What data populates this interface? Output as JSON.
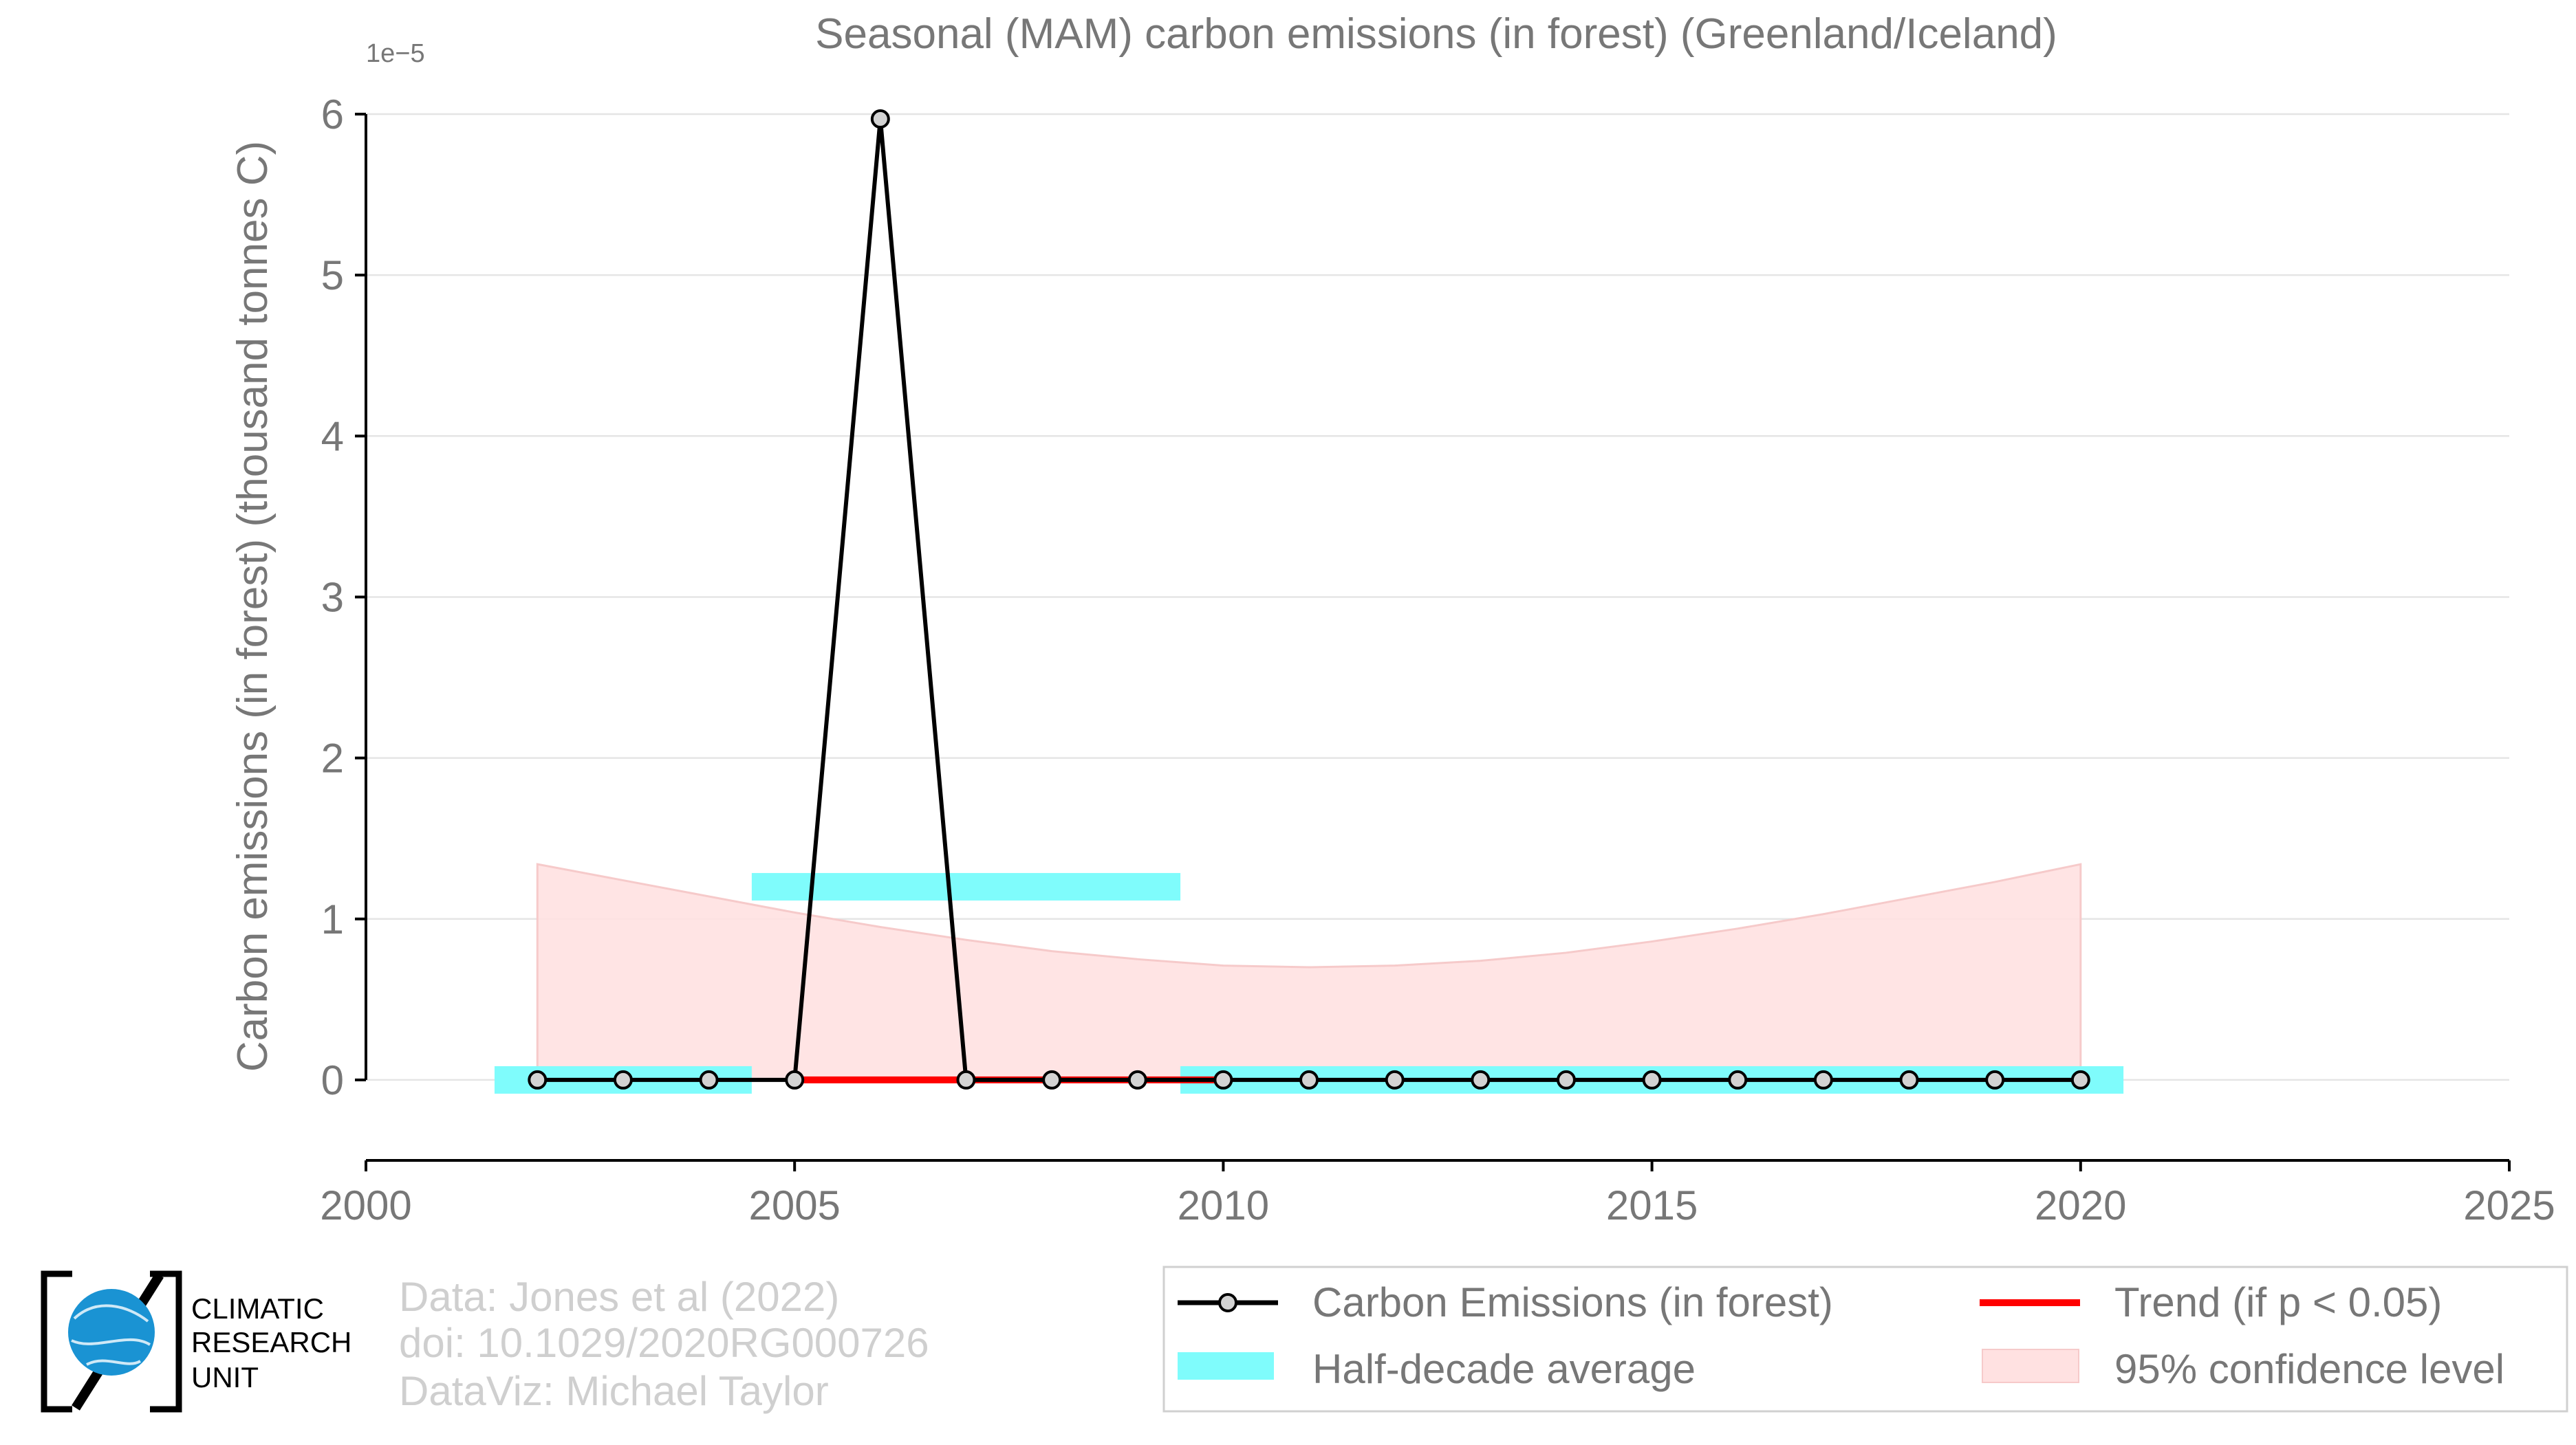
{
  "chart_data": {
    "type": "line",
    "title": "Seasonal (MAM) carbon emissions (in forest) (Greenland/Iceland)",
    "xlabel": "",
    "ylabel": "Carbon emissions (in forest) (thousand tonnes C)",
    "y_scale_label": "1e−5",
    "xlim": [
      2000,
      2025
    ],
    "ylim": [
      -0.5,
      6
    ],
    "x_ticks": [
      2000,
      2005,
      2010,
      2015,
      2020,
      2025
    ],
    "y_ticks": [
      0,
      1,
      2,
      3,
      4,
      5,
      6
    ],
    "grid": "horizontal",
    "legend_position": "bottom-right",
    "series": [
      {
        "name": "Carbon Emissions (in forest)",
        "color": "#000000",
        "x": [
          2002,
          2003,
          2004,
          2005,
          2006,
          2007,
          2008,
          2009,
          2010,
          2011,
          2012,
          2013,
          2014,
          2015,
          2016,
          2017,
          2018,
          2019,
          2020
        ],
        "y": [
          0,
          0,
          0,
          0,
          5.97,
          0,
          0,
          0,
          0,
          0,
          0,
          0,
          0,
          0,
          0,
          0,
          0,
          0,
          0
        ]
      },
      {
        "name": "Trend (if p < 0.05)",
        "color": "#ff0000",
        "x": [
          2005,
          2010
        ],
        "y": [
          0,
          0
        ]
      }
    ],
    "half_decade_averages": {
      "name": "Half-decade average",
      "color": "#7ffcfc",
      "segments": [
        {
          "x0": 2001.5,
          "x1": 2004.5,
          "y": 0
        },
        {
          "x0": 2004.5,
          "x1": 2009.5,
          "y": 1.2
        },
        {
          "x0": 2009.5,
          "x1": 2020.5,
          "y": 0
        }
      ]
    },
    "confidence_band": {
      "name": "95% confidence level",
      "color": "#ffe1e1",
      "x": [
        2002,
        2003,
        2004,
        2005,
        2006,
        2007,
        2008,
        2009,
        2010,
        2011,
        2012,
        2013,
        2014,
        2015,
        2016,
        2017,
        2018,
        2019,
        2020
      ],
      "upper": [
        1.34,
        1.24,
        1.14,
        1.04,
        0.95,
        0.87,
        0.8,
        0.75,
        0.71,
        0.7,
        0.71,
        0.74,
        0.79,
        0.86,
        0.94,
        1.03,
        1.13,
        1.23,
        1.34
      ],
      "lower": [
        0,
        0,
        0,
        0,
        0,
        0,
        0,
        0,
        0,
        0,
        0,
        0,
        0,
        0,
        0,
        0,
        0,
        0,
        0
      ]
    }
  },
  "legend": {
    "items": [
      {
        "label": "Carbon Emissions (in forest)",
        "symbol": "line-marker",
        "color": "#000000"
      },
      {
        "label": "Trend (if p < 0.05)",
        "symbol": "line",
        "color": "#ff0000"
      },
      {
        "label": "Half-decade average",
        "symbol": "band",
        "color": "#7ffcfc"
      },
      {
        "label": "95% confidence level",
        "symbol": "patch",
        "color": "#ffe1e1"
      }
    ]
  },
  "credits": {
    "data_line": "Data: Jones et al (2022)",
    "doi_line": "doi: 10.1029/2020RG000726",
    "dataviz_line": "DataViz: Michael Taylor"
  },
  "logo": {
    "line1": "CLIMATIC",
    "line2": "RESEARCH",
    "line3": "UNIT"
  }
}
